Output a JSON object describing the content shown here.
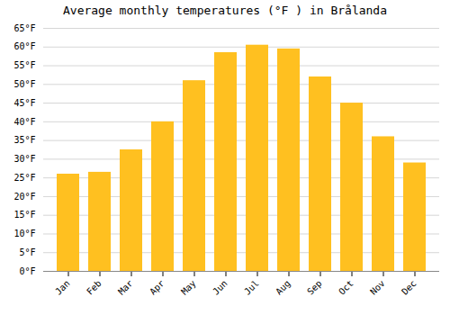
{
  "chart_data": {
    "type": "bar",
    "title": "Average monthly temperatures (°F ) in Brålanda",
    "categories": [
      "Jan",
      "Feb",
      "Mar",
      "Apr",
      "May",
      "Jun",
      "Jul",
      "Aug",
      "Sep",
      "Oct",
      "Nov",
      "Dec"
    ],
    "values": [
      26,
      26.5,
      32.5,
      40,
      51,
      58.5,
      60.5,
      59.5,
      52,
      45,
      36,
      29
    ],
    "color": "#FFC020",
    "ylim": [
      0,
      65
    ],
    "yticks": [
      {
        "value": 0,
        "label": "0°F"
      },
      {
        "value": 5,
        "label": "5°F"
      },
      {
        "value": 10,
        "label": "10°F"
      },
      {
        "value": 15,
        "label": "15°F"
      },
      {
        "value": 20,
        "label": "20°F"
      },
      {
        "value": 25,
        "label": "25°F"
      },
      {
        "value": 30,
        "label": "30°F"
      },
      {
        "value": 35,
        "label": "35°F"
      },
      {
        "value": 40,
        "label": "40°F"
      },
      {
        "value": 45,
        "label": "45°F"
      },
      {
        "value": 50,
        "label": "50°F"
      },
      {
        "value": 55,
        "label": "55°F"
      },
      {
        "value": 60,
        "label": "60°F"
      },
      {
        "value": 65,
        "label": "65°F"
      }
    ],
    "grid": true
  }
}
